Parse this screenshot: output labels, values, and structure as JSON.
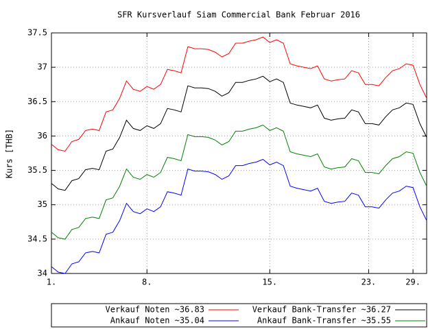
{
  "chart_data": {
    "type": "line",
    "title": "SFR Kursverlauf Siam Commercial Bank Februar 2016",
    "y_label": "Kurs [THB]",
    "x": [
      0,
      2,
      4,
      6,
      8,
      10,
      12,
      14,
      16,
      18,
      20,
      22,
      24,
      26,
      28,
      30,
      32,
      34,
      36,
      38,
      40,
      42,
      44,
      46,
      48,
      50,
      52,
      54,
      56,
      58,
      60,
      62,
      64,
      66,
      68,
      70,
      72,
      74,
      76,
      78,
      80,
      82,
      84,
      86,
      88,
      90,
      92,
      94,
      96,
      98,
      100,
      102,
      104,
      106,
      108,
      110
    ],
    "xlim": [
      0,
      110
    ],
    "xticks": [
      {
        "value": 0,
        "label": "1."
      },
      {
        "value": 28,
        "label": "8."
      },
      {
        "value": 64,
        "label": "15."
      },
      {
        "value": 93,
        "label": "23."
      },
      {
        "value": 106,
        "label": "29."
      }
    ],
    "ylim": [
      34,
      37.5
    ],
    "yticks": [
      34,
      34.5,
      35,
      35.5,
      36,
      36.5,
      37,
      37.5
    ],
    "grid": true,
    "legend": "bottom",
    "series": [
      {
        "name": "Verkauf Noten ~36.83",
        "color": "#ff0000",
        "values": [
          35.88,
          35.8,
          35.78,
          35.92,
          35.95,
          36.08,
          36.1,
          36.08,
          36.35,
          36.38,
          36.55,
          36.8,
          36.68,
          36.65,
          36.72,
          36.68,
          36.75,
          36.97,
          36.95,
          36.92,
          37.3,
          37.27,
          37.27,
          37.26,
          37.22,
          37.15,
          37.2,
          37.35,
          37.35,
          37.38,
          37.4,
          37.44,
          37.36,
          37.4,
          37.35,
          37.05,
          37.02,
          37.0,
          36.98,
          37.02,
          36.83,
          36.8,
          36.82,
          36.83,
          36.95,
          36.92,
          36.75,
          36.75,
          36.73,
          36.85,
          36.95,
          36.98,
          37.05,
          37.03,
          36.75,
          36.55
        ]
      },
      {
        "name": "Verkauf Bank-Transfer ~36.27",
        "color": "#000000",
        "values": [
          35.31,
          35.23,
          35.21,
          35.35,
          35.38,
          35.51,
          35.53,
          35.51,
          35.78,
          35.81,
          35.98,
          36.23,
          36.11,
          36.08,
          36.15,
          36.11,
          36.18,
          36.4,
          36.38,
          36.35,
          36.73,
          36.7,
          36.7,
          36.69,
          36.65,
          36.58,
          36.63,
          36.78,
          36.78,
          36.81,
          36.83,
          36.87,
          36.79,
          36.83,
          36.78,
          36.48,
          36.45,
          36.43,
          36.41,
          36.45,
          36.26,
          36.23,
          36.25,
          36.26,
          36.38,
          36.35,
          36.18,
          36.18,
          36.16,
          36.28,
          36.38,
          36.41,
          36.48,
          36.46,
          36.18,
          35.98
        ]
      },
      {
        "name": "Ankauf Noten ~35.04",
        "color": "#0000ff",
        "values": [
          34.1,
          34.02,
          34.0,
          34.14,
          34.17,
          34.3,
          34.32,
          34.3,
          34.57,
          34.6,
          34.77,
          35.02,
          34.9,
          34.87,
          34.94,
          34.9,
          34.97,
          35.19,
          35.17,
          35.14,
          35.52,
          35.49,
          35.49,
          35.48,
          35.44,
          35.37,
          35.42,
          35.57,
          35.57,
          35.6,
          35.62,
          35.66,
          35.58,
          35.62,
          35.57,
          35.27,
          35.24,
          35.22,
          35.2,
          35.24,
          35.05,
          35.02,
          35.04,
          35.05,
          35.17,
          35.14,
          34.97,
          34.97,
          34.95,
          35.07,
          35.17,
          35.2,
          35.27,
          35.25,
          34.97,
          34.77
        ]
      },
      {
        "name": "Ankauf Bank-Transfer ~35.55",
        "color": "#008000",
        "values": [
          34.6,
          34.52,
          34.5,
          34.64,
          34.67,
          34.8,
          34.82,
          34.8,
          35.07,
          35.1,
          35.27,
          35.52,
          35.4,
          35.37,
          35.44,
          35.4,
          35.47,
          35.69,
          35.67,
          35.64,
          36.02,
          35.99,
          35.99,
          35.98,
          35.94,
          35.87,
          35.92,
          36.07,
          36.07,
          36.1,
          36.12,
          36.16,
          36.08,
          36.12,
          36.07,
          35.77,
          35.74,
          35.72,
          35.7,
          35.74,
          35.55,
          35.52,
          35.54,
          35.55,
          35.67,
          35.64,
          35.47,
          35.47,
          35.45,
          35.57,
          35.67,
          35.7,
          35.77,
          35.75,
          35.47,
          35.27
        ]
      }
    ]
  }
}
